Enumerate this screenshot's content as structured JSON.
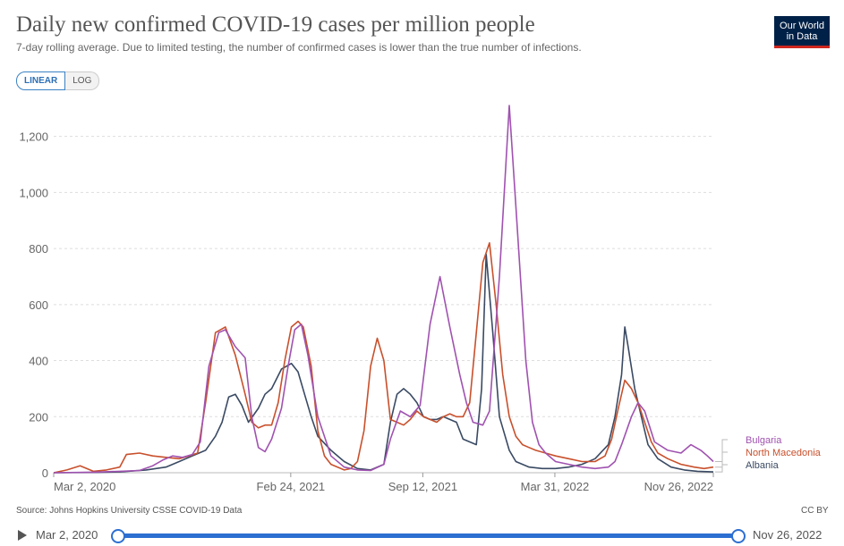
{
  "header": {
    "title": "Daily new confirmed COVID-19 cases per million people",
    "subtitle": "7-day rolling average. Due to limited testing, the number of confirmed cases is lower than the true number of infections.",
    "logo_line1": "Our World",
    "logo_line2": "in Data"
  },
  "toggle": {
    "linear": "LINEAR",
    "log": "LOG"
  },
  "footer": {
    "source": "Source: Johns Hopkins University CSSE COVID-19 Data",
    "license": "CC BY"
  },
  "timeline": {
    "start": "Mar 2, 2020",
    "end": "Nov 26, 2022"
  },
  "colors": {
    "Bulgaria": "#a052b0",
    "North Macedonia": "#c8502c",
    "Albania": "#3a4a63"
  },
  "chart_data": {
    "type": "line",
    "title": "Daily new confirmed COVID-19 cases per million people",
    "xlabel": "",
    "ylabel": "",
    "ylim": [
      0,
      1320
    ],
    "yticks": [
      0,
      200,
      400,
      600,
      800,
      1000,
      1200
    ],
    "ytick_labels": [
      "0",
      "200",
      "400",
      "600",
      "800",
      "1,000",
      "1,200"
    ],
    "xtick_labels": [
      "Mar 2, 2020",
      "Feb 24, 2021",
      "Sep 12, 2021",
      "Mar 31, 2022",
      "Nov 26, 2022"
    ],
    "xtick_days": [
      0,
      359,
      559,
      759,
      999
    ],
    "x_unit": "days since Mar 2, 2020",
    "xlim": [
      0,
      999
    ],
    "grid": true,
    "legend": "right-end labels",
    "series": [
      {
        "name": "Bulgaria",
        "x": [
          0,
          60,
          100,
          130,
          150,
          165,
          180,
          195,
          210,
          222,
          235,
          250,
          260,
          275,
          290,
          300,
          310,
          320,
          330,
          345,
          355,
          365,
          375,
          385,
          400,
          420,
          440,
          460,
          480,
          500,
          510,
          525,
          540,
          555,
          570,
          585,
          600,
          615,
          625,
          635,
          650,
          660,
          675,
          690,
          700,
          715,
          725,
          735,
          745,
          760,
          780,
          800,
          820,
          840,
          850,
          860,
          875,
          885,
          895,
          910,
          930,
          950,
          965,
          980,
          990,
          999
        ],
        "values": [
          0,
          2,
          5,
          8,
          25,
          45,
          60,
          55,
          65,
          110,
          380,
          500,
          510,
          450,
          410,
          200,
          90,
          75,
          120,
          230,
          380,
          510,
          530,
          420,
          200,
          60,
          20,
          10,
          8,
          30,
          120,
          220,
          200,
          240,
          530,
          700,
          520,
          350,
          250,
          180,
          170,
          220,
          700,
          1310,
          950,
          400,
          180,
          100,
          70,
          40,
          30,
          20,
          15,
          20,
          40,
          100,
          200,
          250,
          220,
          110,
          80,
          70,
          100,
          80,
          60,
          40
        ]
      },
      {
        "name": "North Macedonia",
        "x": [
          0,
          20,
          40,
          60,
          80,
          100,
          110,
          130,
          150,
          170,
          190,
          205,
          218,
          230,
          245,
          260,
          275,
          290,
          300,
          310,
          320,
          330,
          340,
          350,
          360,
          370,
          378,
          390,
          400,
          410,
          420,
          430,
          440,
          450,
          460,
          470,
          480,
          490,
          500,
          510,
          520,
          530,
          540,
          550,
          560,
          570,
          580,
          590,
          600,
          610,
          620,
          630,
          640,
          650,
          660,
          670,
          680,
          690,
          700,
          710,
          720,
          730,
          745,
          760,
          780,
          800,
          820,
          835,
          845,
          855,
          865,
          875,
          885,
          895,
          905,
          915,
          930,
          950,
          970,
          985,
          999
        ],
        "values": [
          0,
          10,
          25,
          5,
          10,
          20,
          65,
          70,
          60,
          55,
          50,
          60,
          70,
          250,
          500,
          520,
          420,
          280,
          180,
          160,
          170,
          170,
          250,
          400,
          520,
          540,
          520,
          380,
          150,
          60,
          30,
          20,
          10,
          15,
          40,
          150,
          380,
          480,
          400,
          190,
          180,
          170,
          190,
          220,
          200,
          190,
          180,
          200,
          210,
          200,
          200,
          250,
          500,
          750,
          820,
          600,
          350,
          200,
          130,
          100,
          90,
          80,
          70,
          60,
          50,
          40,
          40,
          60,
          120,
          230,
          330,
          300,
          250,
          180,
          110,
          70,
          50,
          30,
          20,
          15,
          20
        ]
      },
      {
        "name": "Albania",
        "x": [
          0,
          60,
          100,
          140,
          170,
          190,
          210,
          230,
          245,
          255,
          265,
          275,
          285,
          295,
          310,
          320,
          330,
          345,
          360,
          370,
          380,
          390,
          400,
          420,
          440,
          460,
          480,
          500,
          510,
          520,
          530,
          540,
          550,
          560,
          570,
          580,
          590,
          600,
          610,
          620,
          630,
          640,
          648,
          655,
          665,
          675,
          690,
          700,
          720,
          740,
          760,
          780,
          800,
          820,
          840,
          850,
          860,
          865,
          870,
          880,
          890,
          900,
          915,
          935,
          955,
          975,
          999
        ],
        "values": [
          0,
          1,
          3,
          10,
          20,
          40,
          60,
          80,
          130,
          180,
          270,
          280,
          240,
          180,
          230,
          280,
          300,
          370,
          390,
          360,
          280,
          200,
          130,
          80,
          40,
          15,
          10,
          30,
          180,
          280,
          300,
          280,
          250,
          200,
          190,
          190,
          200,
          190,
          180,
          120,
          110,
          100,
          300,
          780,
          500,
          200,
          80,
          40,
          20,
          15,
          15,
          20,
          30,
          50,
          100,
          200,
          350,
          520,
          450,
          300,
          200,
          100,
          50,
          20,
          10,
          5,
          3
        ]
      }
    ]
  }
}
